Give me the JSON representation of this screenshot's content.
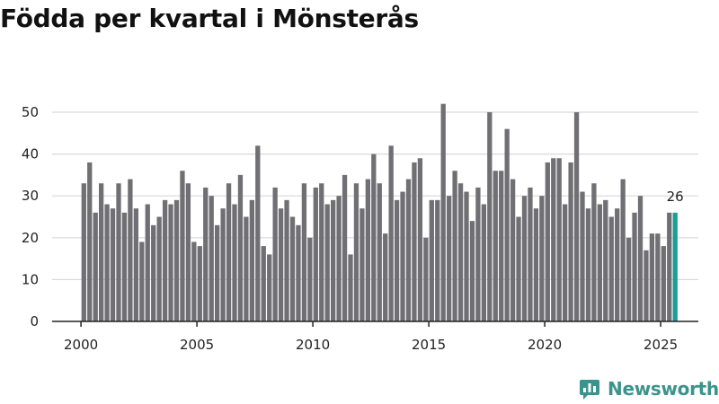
{
  "title": "Födda per kvartal i Mönsterås",
  "brand": {
    "name": "Newsworthy",
    "icon": "newsworthy-logo-icon"
  },
  "colors": {
    "bar": "#707074",
    "highlight": "#1a9e95",
    "grid": "#d9d9d9",
    "axis": "#222222"
  },
  "chart_data": {
    "type": "bar",
    "title": "Födda per kvartal i Mönsterås",
    "xlabel": "",
    "ylabel": "",
    "ylim": [
      0,
      55
    ],
    "yticks": [
      0,
      10,
      20,
      30,
      40,
      50
    ],
    "xticks": [
      2000,
      2005,
      2010,
      2015,
      2020,
      2025
    ],
    "grid": true,
    "categories": [
      "2000 Q1",
      "2000 Q2",
      "2000 Q3",
      "2000 Q4",
      "2001 Q1",
      "2001 Q2",
      "2001 Q3",
      "2001 Q4",
      "2002 Q1",
      "2002 Q2",
      "2002 Q3",
      "2002 Q4",
      "2003 Q1",
      "2003 Q2",
      "2003 Q3",
      "2003 Q4",
      "2004 Q1",
      "2004 Q2",
      "2004 Q3",
      "2004 Q4",
      "2005 Q1",
      "2005 Q2",
      "2005 Q3",
      "2005 Q4",
      "2006 Q1",
      "2006 Q2",
      "2006 Q3",
      "2006 Q4",
      "2007 Q1",
      "2007 Q2",
      "2007 Q3",
      "2007 Q4",
      "2008 Q1",
      "2008 Q2",
      "2008 Q3",
      "2008 Q4",
      "2009 Q1",
      "2009 Q2",
      "2009 Q3",
      "2009 Q4",
      "2010 Q1",
      "2010 Q2",
      "2010 Q3",
      "2010 Q4",
      "2011 Q1",
      "2011 Q2",
      "2011 Q3",
      "2011 Q4",
      "2012 Q1",
      "2012 Q2",
      "2012 Q3",
      "2012 Q4",
      "2013 Q1",
      "2013 Q2",
      "2013 Q3",
      "2013 Q4",
      "2014 Q1",
      "2014 Q2",
      "2014 Q3",
      "2014 Q4",
      "2015 Q1",
      "2015 Q2",
      "2015 Q3",
      "2015 Q4",
      "2016 Q1",
      "2016 Q2",
      "2016 Q3",
      "2016 Q4",
      "2017 Q1",
      "2017 Q2",
      "2017 Q3",
      "2017 Q4",
      "2018 Q1",
      "2018 Q2",
      "2018 Q3",
      "2018 Q4",
      "2019 Q1",
      "2019 Q2",
      "2019 Q3",
      "2019 Q4",
      "2020 Q1",
      "2020 Q2",
      "2020 Q3",
      "2020 Q4",
      "2021 Q1",
      "2021 Q2",
      "2021 Q3",
      "2021 Q4",
      "2022 Q1",
      "2022 Q2",
      "2022 Q3",
      "2022 Q4",
      "2023 Q1",
      "2023 Q2",
      "2023 Q3",
      "2023 Q4",
      "2024 Q1",
      "2024 Q2",
      "2024 Q3",
      "2024 Q4",
      "2025 Q1",
      "2025 Q2",
      "2025 Q3"
    ],
    "values": [
      33,
      38,
      26,
      33,
      28,
      27,
      33,
      26,
      34,
      27,
      19,
      28,
      23,
      25,
      29,
      28,
      29,
      36,
      33,
      19,
      18,
      32,
      30,
      23,
      27,
      33,
      28,
      35,
      25,
      29,
      42,
      18,
      16,
      32,
      27,
      29,
      25,
      23,
      33,
      20,
      32,
      33,
      28,
      29,
      30,
      35,
      16,
      33,
      27,
      34,
      40,
      33,
      21,
      42,
      29,
      31,
      34,
      38,
      39,
      20,
      29,
      29,
      52,
      30,
      36,
      33,
      31,
      24,
      32,
      28,
      50,
      36,
      36,
      46,
      34,
      25,
      30,
      32,
      27,
      30,
      38,
      39,
      39,
      28,
      38,
      50,
      31,
      27,
      33,
      28,
      29,
      25,
      27,
      34,
      20,
      26,
      30,
      17,
      21,
      21,
      18,
      26,
      26
    ],
    "highlight_index": 102,
    "data_labels": [
      {
        "index": 102,
        "text": "26"
      }
    ]
  }
}
